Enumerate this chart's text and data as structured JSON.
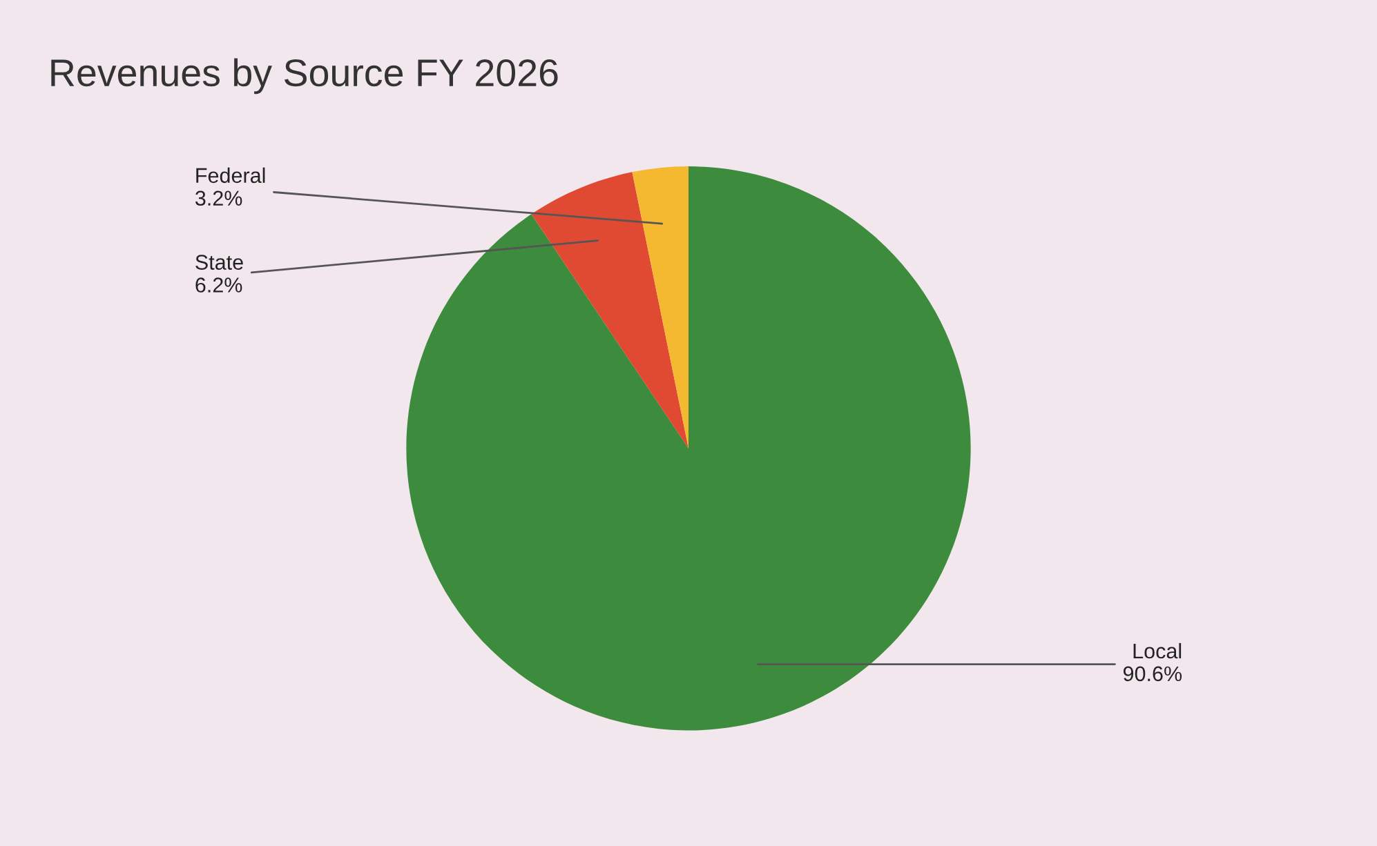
{
  "chart_data": {
    "type": "pie",
    "title": "Revenues by Source FY 2026",
    "categories": [
      "Local",
      "State",
      "Federal"
    ],
    "values": [
      90.6,
      6.2,
      3.2
    ],
    "colors": [
      "#3d8c3d",
      "#e04a32",
      "#f4b930"
    ],
    "value_labels": [
      "90.6%",
      "6.2%",
      "3.2%"
    ],
    "legend": false
  }
}
